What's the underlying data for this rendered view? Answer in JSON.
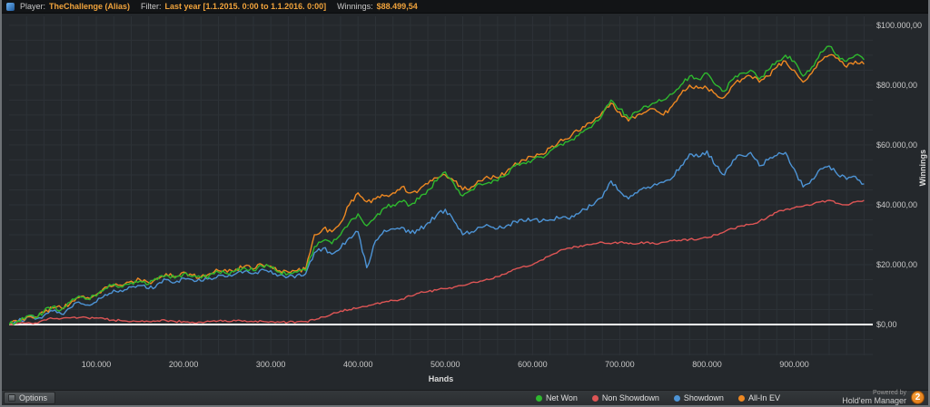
{
  "titlebar": {
    "player_label": "Player:",
    "player_value": "TheChallenge (Alias)",
    "filter_label": "Filter:",
    "filter_value": "Last year [1.1.2015. 0:00 to 1.1.2016. 0:00]",
    "winnings_label": "Winnings:",
    "winnings_value": "$88.499,54"
  },
  "bottombar": {
    "options_label": "Options",
    "powered_by": "Powered by",
    "brand": "Hold'em Manager",
    "badge": "2"
  },
  "chart_data": {
    "type": "line",
    "title": "",
    "xlabel": "Hands",
    "ylabel": "Winnings",
    "legend_position": "bottom",
    "grid": {
      "x_step": 20000,
      "y_step": 5000
    },
    "x_step": 10000,
    "x_max": 990000,
    "y_min": -10300,
    "y_max": 103000,
    "colors": {
      "background": "#24282c",
      "grid": "#2d3237",
      "zero_line": "#ffffff"
    },
    "x_ticks": [
      {
        "value": 100000,
        "label": "100.000"
      },
      {
        "value": 200000,
        "label": "200.000"
      },
      {
        "value": 300000,
        "label": "300.000"
      },
      {
        "value": 400000,
        "label": "400.000"
      },
      {
        "value": 500000,
        "label": "500.000"
      },
      {
        "value": 600000,
        "label": "600.000"
      },
      {
        "value": 700000,
        "label": "700.000"
      },
      {
        "value": 800000,
        "label": "800.000"
      },
      {
        "value": 900000,
        "label": "900.000"
      }
    ],
    "y_ticks": [
      {
        "value": 0,
        "label": "$0,00"
      },
      {
        "value": 20000,
        "label": "$20.000,00"
      },
      {
        "value": 40000,
        "label": "$40.000,00"
      },
      {
        "value": 60000,
        "label": "$60.000,00"
      },
      {
        "value": 80000,
        "label": "$80.000,00"
      },
      {
        "value": 100000,
        "label": "$100.000,00"
      }
    ],
    "series": [
      {
        "name": "Net Won",
        "color": "#2eb82e",
        "values": [
          0,
          1200,
          2800,
          2200,
          4500,
          6000,
          5000,
          7500,
          9500,
          8500,
          9500,
          12000,
          13500,
          12500,
          14000,
          14500,
          13500,
          15000,
          16500,
          15500,
          17000,
          16000,
          15500,
          16500,
          17500,
          17000,
          18000,
          19000,
          18000,
          19500,
          19000,
          17500,
          17000,
          17500,
          18000,
          26000,
          28000,
          27000,
          30000,
          34000,
          37000,
          33000,
          36000,
          39000,
          40000,
          41000,
          40000,
          42000,
          45000,
          48000,
          51000,
          47000,
          43000,
          45000,
          47000,
          47500,
          48000,
          50000,
          53000,
          54000,
          55000,
          56000,
          58000,
          60000,
          61000,
          63000,
          65000,
          67000,
          70000,
          75000,
          72000,
          69000,
          71000,
          73000,
          74000,
          75000,
          77000,
          80000,
          83000,
          82000,
          84000,
          80000,
          78000,
          82000,
          84000,
          85000,
          82000,
          85000,
          88000,
          90000,
          88000,
          83000,
          86000,
          91000,
          93000,
          90000,
          88000,
          90000,
          88500
        ]
      },
      {
        "name": "Non Showdown",
        "color": "#dd5555",
        "values": [
          0,
          300,
          500,
          500,
          1500,
          2000,
          2000,
          2200,
          2300,
          2200,
          2200,
          1800,
          1500,
          1200,
          1000,
          1000,
          1000,
          1200,
          1300,
          1000,
          1000,
          800,
          800,
          1000,
          1200,
          1000,
          1200,
          1300,
          900,
          1100,
          1000,
          800,
          800,
          900,
          1000,
          1500,
          2500,
          3500,
          4500,
          5000,
          5500,
          6000,
          7000,
          7500,
          8000,
          8500,
          9500,
          10500,
          11000,
          11500,
          12000,
          12500,
          13000,
          14000,
          14500,
          15000,
          16000,
          17000,
          18500,
          19500,
          20000,
          21500,
          23000,
          24500,
          25500,
          26000,
          26500,
          27000,
          27500,
          27000,
          27500,
          27000,
          27000,
          27500,
          27000,
          27500,
          28000,
          28000,
          28500,
          28500,
          29000,
          30000,
          31000,
          32000,
          33000,
          33500,
          34500,
          36000,
          37500,
          38500,
          39000,
          39500,
          40000,
          41000,
          41500,
          40500,
          40000,
          41000,
          41500
        ]
      },
      {
        "name": "Showdown",
        "color": "#4d94d6",
        "values": [
          0,
          1000,
          2300,
          1800,
          3000,
          4500,
          3500,
          5500,
          7500,
          6500,
          7500,
          10000,
          11500,
          11000,
          12500,
          13000,
          12000,
          13500,
          15000,
          14000,
          15500,
          15000,
          14500,
          15500,
          16500,
          16000,
          17000,
          17800,
          17000,
          18500,
          18000,
          16500,
          16000,
          16500,
          17000,
          24000,
          25500,
          23500,
          25500,
          29000,
          31000,
          19000,
          28000,
          31500,
          32000,
          32500,
          30500,
          31500,
          34000,
          36500,
          38500,
          34500,
          30000,
          31000,
          32500,
          33000,
          32000,
          33000,
          34500,
          34500,
          35000,
          34500,
          35000,
          35500,
          35500,
          37000,
          38500,
          40000,
          42500,
          48000,
          44500,
          42000,
          44000,
          45500,
          47000,
          47500,
          49000,
          53000,
          57000,
          56000,
          58000,
          53000,
          50000,
          55000,
          56500,
          57500,
          53000,
          55000,
          56500,
          57500,
          52000,
          46000,
          48500,
          52000,
          53000,
          50000,
          48500,
          49500,
          47000
        ]
      },
      {
        "name": "All-In EV",
        "color": "#ee8822",
        "values": [
          0,
          1000,
          2500,
          2500,
          4000,
          5500,
          5500,
          7000,
          9000,
          9000,
          10000,
          12500,
          13000,
          13000,
          14500,
          15000,
          14000,
          15500,
          17000,
          16000,
          17500,
          16500,
          16000,
          17000,
          18000,
          17500,
          18500,
          19500,
          18500,
          20000,
          19500,
          18000,
          17500,
          18000,
          18500,
          30000,
          32000,
          31000,
          34000,
          40000,
          44000,
          41000,
          42000,
          43000,
          44000,
          46000,
          44000,
          45000,
          47000,
          49000,
          50000,
          48000,
          45000,
          46000,
          48000,
          49000,
          49000,
          51000,
          54000,
          55000,
          56000,
          57000,
          59000,
          61000,
          62000,
          65000,
          66000,
          68000,
          71000,
          74000,
          71000,
          68000,
          70000,
          71000,
          72000,
          70000,
          73000,
          77000,
          80000,
          79000,
          79000,
          77000,
          76000,
          80000,
          82000,
          83000,
          81000,
          83000,
          86000,
          88000,
          85000,
          81000,
          84000,
          88000,
          90000,
          89000,
          86000,
          88000,
          87000
        ]
      }
    ]
  }
}
